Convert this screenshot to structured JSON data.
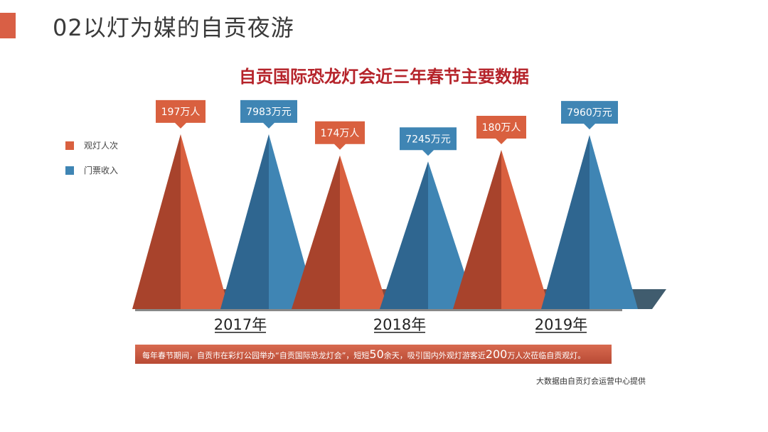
{
  "slide": {
    "title": "02以灯为媒的自贡夜游"
  },
  "note": {
    "part1": "每年春节期间，自贡市在彩灯公园举办“自贡国际恐龙灯会”，短短",
    "num1": "50",
    "part2": "余天，吸引国内外观灯游客近",
    "num2": "200",
    "part3": "万人次莅临自贡观灯。"
  },
  "source": "大数据由自贡灯会运营中心提供",
  "colors": {
    "visitors": "#d9603f",
    "revenue": "#3f85b4",
    "title": "#b5232a",
    "accent": "#d95f45"
  },
  "chart_data": {
    "type": "bar",
    "title": "自贡国际恐龙灯会近三年春节主要数据",
    "categories": [
      "2017年",
      "2018年",
      "2019年"
    ],
    "legend_position": "left",
    "series": [
      {
        "name": "观灯人次",
        "values": [
          197,
          174,
          180
        ],
        "labels": [
          "197万人",
          "174万人",
          "180万人"
        ]
      },
      {
        "name": "门票收入",
        "values": [
          7983,
          7245,
          7960
        ],
        "labels": [
          "7983万元",
          "7245万元",
          "7960万元"
        ]
      }
    ]
  }
}
